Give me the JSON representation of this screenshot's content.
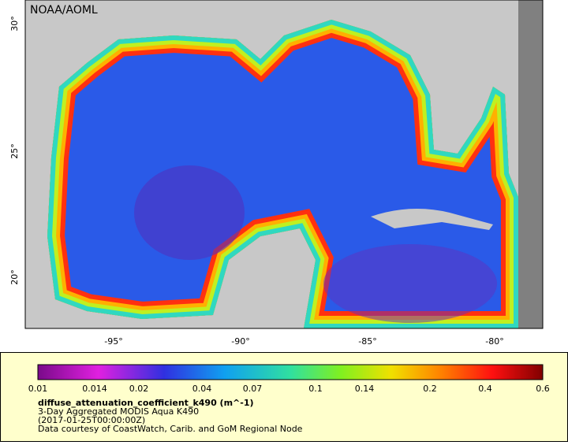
{
  "map": {
    "credit": "NOAA/AOML",
    "x_ticks": [
      "-95°",
      "-90°",
      "-85°",
      "-80°"
    ],
    "y_ticks": [
      "30°",
      "25°",
      "20°"
    ]
  },
  "legend": {
    "ticks": [
      "0.01",
      "0.014",
      "0.02",
      "0.04",
      "0.07",
      "0.1",
      "0.14",
      "0.2",
      "0.4",
      "0.6"
    ],
    "variable": "diffuse_attenuation_coefficient_k490 (m^-1)",
    "lines": [
      "3-Day Aggregated MODIS Aqua K490",
      "(2017-01-25T00:00:00Z)",
      "Data courtesy of CoastWatch, Carib. and GoM Regional Node"
    ]
  }
}
